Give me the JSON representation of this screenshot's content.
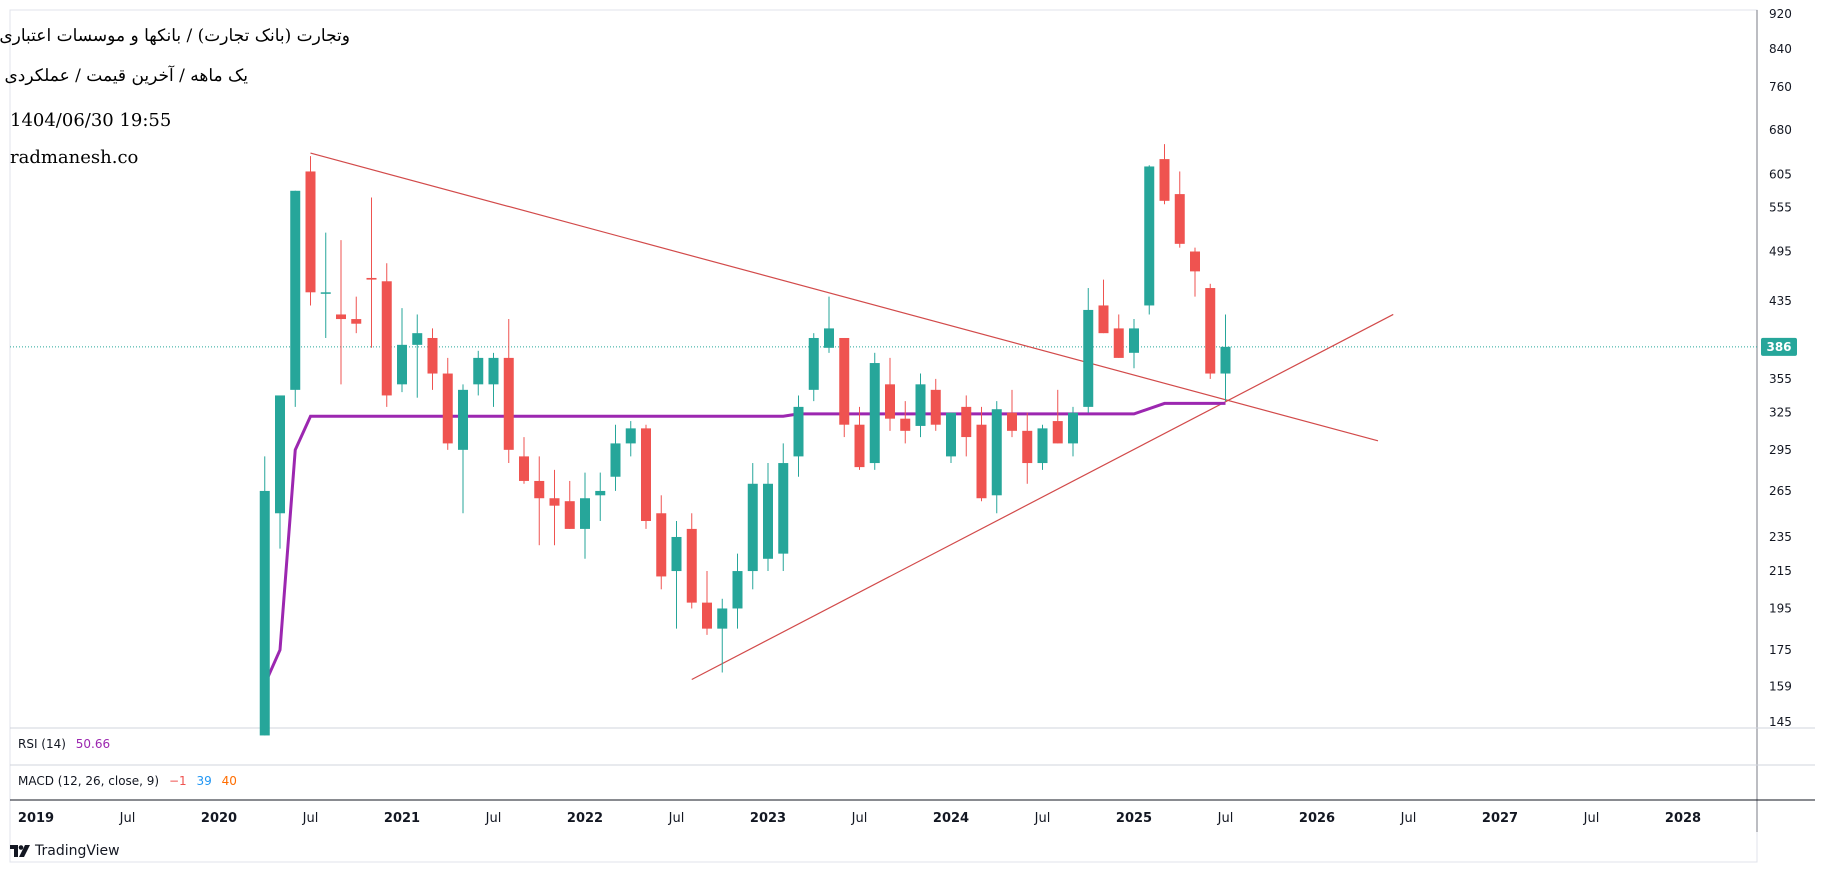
{
  "overlay": {
    "title": "وتجارت (بانک تجارت) / بانکها و موسسات اعتباری",
    "subtitle": "یک ماهه / آخرین قیمت / عملکردی",
    "datetime": "1404/06/30 19:55",
    "website": "radmanesh.co"
  },
  "indicators": {
    "rsi": {
      "label": "RSI (14)",
      "value": "50.66"
    },
    "macd": {
      "label": "MACD (12, 26, close, 9)",
      "v1": "−1",
      "v2": "39",
      "v3": "40"
    }
  },
  "branding": {
    "name": "TradingView"
  },
  "colors": {
    "up": "#26a69a",
    "down": "#ef5350",
    "ma": "#9c27b0",
    "trend": "#d24a4a",
    "current": "#26a69a",
    "rsi": "#9c27b0",
    "macd1": "#ef5350",
    "macd2": "#2196f3",
    "macd3": "#ff6d00"
  },
  "chart_data": {
    "type": "candlestick",
    "scale": "log",
    "price_axis_ticks": [
      145,
      159,
      175,
      195,
      215,
      235,
      265,
      295,
      325,
      355,
      386,
      435,
      495,
      555,
      605,
      680,
      760,
      840,
      920
    ],
    "current_price": {
      "value": 386,
      "label": "386"
    },
    "time_axis_labels": [
      "2019",
      "Jul",
      "2020",
      "Jul",
      "2021",
      "Jul",
      "2022",
      "Jul",
      "2023",
      "Jul",
      "2024",
      "Jul",
      "2025",
      "Jul",
      "2026",
      "Jul",
      "2027",
      "Jul",
      "2028"
    ],
    "candles": [
      {
        "date": "2020-04",
        "o": 140,
        "h": 290,
        "l": 140,
        "c": 265
      },
      {
        "date": "2020-05",
        "o": 250,
        "h": 340,
        "l": 228,
        "c": 340
      },
      {
        "date": "2020-06",
        "o": 345,
        "h": 580,
        "l": 330,
        "c": 580
      },
      {
        "date": "2020-07",
        "o": 610,
        "h": 635,
        "l": 430,
        "c": 445
      },
      {
        "date": "2020-08",
        "o": 445,
        "h": 520,
        "l": 395,
        "c": 445
      },
      {
        "date": "2020-09",
        "o": 420,
        "h": 510,
        "l": 350,
        "c": 415
      },
      {
        "date": "2020-10",
        "o": 415,
        "h": 440,
        "l": 400,
        "c": 410
      },
      {
        "date": "2020-11",
        "o": 462,
        "h": 570,
        "l": 385,
        "c": 460
      },
      {
        "date": "2020-12",
        "o": 458,
        "h": 480,
        "l": 330,
        "c": 340
      },
      {
        "date": "2021-01",
        "o": 350,
        "h": 427,
        "l": 343,
        "c": 388
      },
      {
        "date": "2021-02",
        "o": 388,
        "h": 420,
        "l": 338,
        "c": 400
      },
      {
        "date": "2021-03",
        "o": 395,
        "h": 405,
        "l": 345,
        "c": 360
      },
      {
        "date": "2021-04",
        "o": 360,
        "h": 375,
        "l": 295,
        "c": 300
      },
      {
        "date": "2021-05",
        "o": 295,
        "h": 350,
        "l": 250,
        "c": 345
      },
      {
        "date": "2021-06",
        "o": 350,
        "h": 382,
        "l": 340,
        "c": 375
      },
      {
        "date": "2021-07",
        "o": 350,
        "h": 380,
        "l": 330,
        "c": 375
      },
      {
        "date": "2021-08",
        "o": 375,
        "h": 415,
        "l": 285,
        "c": 295
      },
      {
        "date": "2021-09",
        "o": 290,
        "h": 305,
        "l": 270,
        "c": 272
      },
      {
        "date": "2021-10",
        "o": 272,
        "h": 290,
        "l": 230,
        "c": 260
      },
      {
        "date": "2021-11",
        "o": 260,
        "h": 280,
        "l": 230,
        "c": 255
      },
      {
        "date": "2021-12",
        "o": 258,
        "h": 272,
        "l": 240,
        "c": 240
      },
      {
        "date": "2022-01",
        "o": 240,
        "h": 278,
        "l": 222,
        "c": 260
      },
      {
        "date": "2022-02",
        "o": 262,
        "h": 278,
        "l": 245,
        "c": 265
      },
      {
        "date": "2022-03",
        "o": 275,
        "h": 315,
        "l": 265,
        "c": 300
      },
      {
        "date": "2022-04",
        "o": 300,
        "h": 318,
        "l": 290,
        "c": 312
      },
      {
        "date": "2022-05",
        "o": 312,
        "h": 315,
        "l": 240,
        "c": 245
      },
      {
        "date": "2022-06",
        "o": 250,
        "h": 262,
        "l": 205,
        "c": 212
      },
      {
        "date": "2022-07",
        "o": 215,
        "h": 245,
        "l": 185,
        "c": 235
      },
      {
        "date": "2022-08",
        "o": 240,
        "h": 250,
        "l": 195,
        "c": 198
      },
      {
        "date": "2022-09",
        "o": 198,
        "h": 215,
        "l": 182,
        "c": 185
      },
      {
        "date": "2022-10",
        "o": 185,
        "h": 200,
        "l": 165,
        "c": 195
      },
      {
        "date": "2022-11",
        "o": 195,
        "h": 225,
        "l": 185,
        "c": 215
      },
      {
        "date": "2022-12",
        "o": 215,
        "h": 285,
        "l": 205,
        "c": 270
      },
      {
        "date": "2023-01",
        "o": 222,
        "h": 285,
        "l": 215,
        "c": 270
      },
      {
        "date": "2023-02",
        "o": 225,
        "h": 300,
        "l": 215,
        "c": 285
      },
      {
        "date": "2023-03",
        "o": 290,
        "h": 340,
        "l": 275,
        "c": 330
      },
      {
        "date": "2023-04",
        "o": 345,
        "h": 400,
        "l": 335,
        "c": 395
      },
      {
        "date": "2023-05",
        "o": 385,
        "h": 440,
        "l": 380,
        "c": 405
      },
      {
        "date": "2023-06",
        "o": 395,
        "h": 395,
        "l": 305,
        "c": 315
      },
      {
        "date": "2023-07",
        "o": 315,
        "h": 330,
        "l": 280,
        "c": 282
      },
      {
        "date": "2023-08",
        "o": 285,
        "h": 380,
        "l": 280,
        "c": 370
      },
      {
        "date": "2023-09",
        "o": 350,
        "h": 375,
        "l": 310,
        "c": 320
      },
      {
        "date": "2023-10",
        "o": 320,
        "h": 335,
        "l": 300,
        "c": 310
      },
      {
        "date": "2023-11",
        "o": 314,
        "h": 360,
        "l": 305,
        "c": 350
      },
      {
        "date": "2023-12",
        "o": 345,
        "h": 355,
        "l": 310,
        "c": 315
      },
      {
        "date": "2023-12b",
        "o": 315,
        "h": 318,
        "l": 290,
        "c": 295
      },
      {
        "date": "2024-01",
        "o": 290,
        "h": 325,
        "l": 285,
        "c": 325
      },
      {
        "date": "2024-02",
        "o": 330,
        "h": 340,
        "l": 290,
        "c": 305
      },
      {
        "date": "2024-03",
        "o": 315,
        "h": 330,
        "l": 258,
        "c": 260
      },
      {
        "date": "2024-04",
        "o": 262,
        "h": 335,
        "l": 250,
        "c": 328
      },
      {
        "date": "2024-05",
        "o": 325,
        "h": 345,
        "l": 305,
        "c": 310
      },
      {
        "date": "2024-06",
        "o": 310,
        "h": 325,
        "l": 270,
        "c": 285
      },
      {
        "date": "2024-07",
        "o": 285,
        "h": 315,
        "l": 280,
        "c": 312
      },
      {
        "date": "2024-08",
        "o": 318,
        "h": 345,
        "l": 300,
        "c": 300
      },
      {
        "date": "2024-09",
        "o": 300,
        "h": 330,
        "l": 290,
        "c": 325
      },
      {
        "date": "2024-10",
        "o": 330,
        "h": 450,
        "l": 325,
        "c": 425
      },
      {
        "date": "2024-11",
        "o": 430,
        "h": 460,
        "l": 400,
        "c": 400
      },
      {
        "date": "2024-12",
        "o": 405,
        "h": 420,
        "l": 375,
        "c": 375
      },
      {
        "date": "2025-01",
        "o": 380,
        "h": 415,
        "l": 365,
        "c": 405
      },
      {
        "date": "2025-02",
        "o": 430,
        "h": 620,
        "l": 420,
        "c": 618
      },
      {
        "date": "2025-03",
        "o": 630,
        "h": 655,
        "l": 560,
        "c": 565
      },
      {
        "date": "2025-04",
        "o": 575,
        "h": 610,
        "l": 500,
        "c": 505
      },
      {
        "date": "2025-05",
        "o": 495,
        "h": 500,
        "l": 440,
        "c": 470
      },
      {
        "date": "2025-06",
        "o": 450,
        "h": 455,
        "l": 355,
        "c": 360
      },
      {
        "date": "2025-07",
        "o": 360,
        "h": 420,
        "l": 335,
        "c": 386
      }
    ],
    "moving_average": [
      {
        "date": "2020-04",
        "v": 160
      },
      {
        "date": "2020-05",
        "v": 175
      },
      {
        "date": "2020-06",
        "v": 295
      },
      {
        "date": "2020-07",
        "v": 322
      },
      {
        "date": "2023-02",
        "v": 322
      },
      {
        "date": "2023-03",
        "v": 324
      },
      {
        "date": "2025-01",
        "v": 324
      },
      {
        "date": "2025-03",
        "v": 333
      },
      {
        "date": "2025-07",
        "v": 333
      }
    ],
    "trendlines": [
      {
        "name": "descending",
        "from": {
          "date": "2020-07",
          "v": 640
        },
        "to": {
          "date": "2026-05",
          "v": 302
        }
      },
      {
        "name": "ascending",
        "from": {
          "date": "2022-08",
          "v": 162
        },
        "to": {
          "date": "2026-06",
          "v": 420
        }
      }
    ],
    "grid": false
  }
}
